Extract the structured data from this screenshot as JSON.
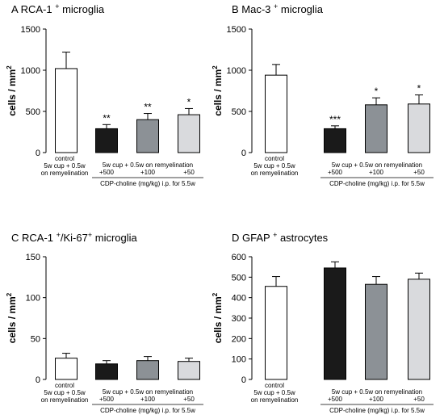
{
  "figure": {
    "panel_letters": [
      "A",
      "B",
      "C",
      "D"
    ]
  },
  "chart_data": [
    {
      "type": "bar",
      "panel": "A",
      "title": "RCA-1",
      "title_sup": "+",
      "title_suffix": "microglia",
      "ylabel": "cells / mm",
      "ylabel_sup": "2",
      "ylim": [
        0,
        1500
      ],
      "yticks": [
        0,
        500,
        1000,
        1500
      ],
      "categories": [
        "control",
        "+500",
        "+100",
        "+50"
      ],
      "values": [
        1020,
        290,
        400,
        460
      ],
      "errors": [
        200,
        50,
        75,
        75
      ],
      "significance": [
        "",
        "**",
        "**",
        "*"
      ],
      "colors": [
        "#ffffff",
        "#1a1a1a",
        "#8c9196",
        "#d9dadd"
      ]
    },
    {
      "type": "bar",
      "panel": "B",
      "title": "Mac-3",
      "title_sup": "+",
      "title_suffix": "microglia",
      "ylabel": "cells / mm",
      "ylabel_sup": "2",
      "ylim": [
        0,
        1500
      ],
      "yticks": [
        0,
        500,
        1000,
        1500
      ],
      "categories": [
        "control",
        "+500",
        "+100",
        "+50"
      ],
      "values": [
        940,
        290,
        580,
        590
      ],
      "errors": [
        130,
        35,
        85,
        110
      ],
      "significance": [
        "",
        "***",
        "*",
        "*"
      ],
      "colors": [
        "#ffffff",
        "#1a1a1a",
        "#8c9196",
        "#d9dadd"
      ]
    },
    {
      "type": "bar",
      "panel": "C",
      "title": "RCA-1",
      "title_sup": "+",
      "title_mid": "/Ki-67",
      "title_sup2": "+",
      "title_suffix": "microglia",
      "ylabel": "cells / mm",
      "ylabel_sup": "2",
      "ylim": [
        0,
        150
      ],
      "yticks": [
        0,
        50,
        100,
        150
      ],
      "categories": [
        "control",
        "+500",
        "+100",
        "+50"
      ],
      "values": [
        26,
        19,
        23,
        22
      ],
      "errors": [
        6,
        4,
        5,
        4
      ],
      "significance": [
        "",
        "",
        "",
        ""
      ],
      "colors": [
        "#ffffff",
        "#1a1a1a",
        "#8c9196",
        "#d9dadd"
      ]
    },
    {
      "type": "bar",
      "panel": "D",
      "title": "GFAP",
      "title_sup": "+",
      "title_suffix": "astrocytes",
      "ylabel": "cells / mm",
      "ylabel_sup": "2",
      "ylim": [
        0,
        600
      ],
      "yticks": [
        0,
        100,
        200,
        300,
        400,
        500,
        600
      ],
      "categories": [
        "control",
        "+500",
        "+100",
        "+50"
      ],
      "values": [
        455,
        545,
        465,
        490
      ],
      "errors": [
        48,
        30,
        38,
        30
      ],
      "significance": [
        "",
        "",
        "",
        ""
      ],
      "colors": [
        "#ffffff",
        "#1a1a1a",
        "#8c9196",
        "#d9dadd"
      ]
    }
  ],
  "xaxis_labels": {
    "control_line1": "control",
    "control_line2": "5w cup + 0.5w",
    "control_line3": "on remyelination",
    "group_header": "5w cup + 0.5w on remyelination",
    "dose_labels": [
      "+500",
      "+100",
      "+50"
    ],
    "treatment": "CDP-choline (mg/kg) i.p. for 5.5w"
  }
}
